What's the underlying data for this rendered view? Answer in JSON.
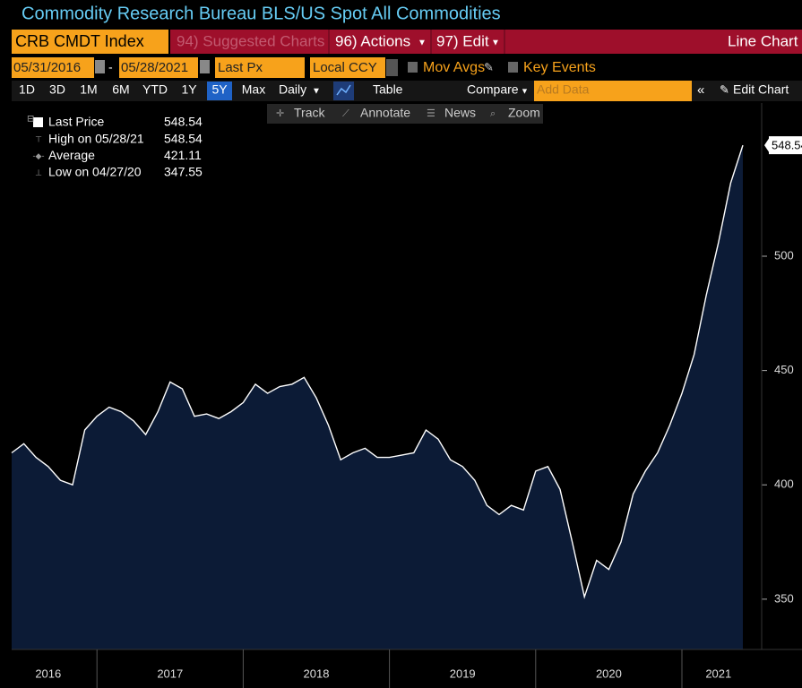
{
  "header": {
    "title": "Commodity Research Bureau BLS/US Spot All Commodities"
  },
  "toolbar": {
    "security": "CRB CMDT Index",
    "suggested": "94) Suggested Charts",
    "actions": "96) Actions",
    "edit": "97) Edit",
    "chart_type": "Line Chart"
  },
  "settings": {
    "start_date": "05/31/2016",
    "end_date": "05/28/2021",
    "field": "Last Px",
    "currency": "Local CCY",
    "mov_avgs": "Mov Avgs",
    "key_events": "Key Events"
  },
  "periods": [
    "1D",
    "3D",
    "1M",
    "6M",
    "YTD",
    "1Y",
    "5Y",
    "Max"
  ],
  "selected_period": "5Y",
  "controls": {
    "frequency": "Daily",
    "table": "Table",
    "compare": "Compare",
    "add_data": "Add Data",
    "edit_chart": "Edit Chart"
  },
  "tools": [
    "Track",
    "Annotate",
    "News",
    "Zoom"
  ],
  "chart_data": {
    "type": "line",
    "categories": [
      null,
      null,
      null,
      "2016",
      null,
      null,
      null,
      null,
      null,
      null,
      null,
      null,
      null,
      "2017",
      null,
      null,
      null,
      null,
      null,
      null,
      null,
      null,
      null,
      null,
      null,
      "2018",
      null,
      null,
      null,
      null,
      null,
      null,
      null,
      null,
      null,
      null,
      null,
      "2019",
      null,
      null,
      null,
      null,
      null,
      null,
      null,
      null,
      null,
      null,
      null,
      "2020",
      null,
      null,
      null,
      null,
      null,
      null,
      null,
      null,
      "2021",
      null,
      null
    ],
    "series": [
      {
        "name": "Last Price",
        "color": "#ffffff",
        "fill": "#0c1b36",
        "values": [
          414,
          418,
          412,
          408,
          402,
          400,
          424,
          430,
          434,
          432,
          428,
          422,
          432,
          445,
          442,
          430,
          431,
          429,
          432,
          436,
          444,
          440,
          443,
          444,
          447,
          438,
          426,
          411,
          414,
          416,
          412,
          412,
          413,
          414,
          424,
          420,
          411,
          408,
          402,
          391,
          387,
          391,
          389,
          406,
          408,
          398,
          375,
          351,
          367,
          363,
          375,
          396,
          406,
          414,
          426,
          440,
          457,
          483,
          506,
          532,
          548.54
        ]
      }
    ],
    "stats": [
      {
        "label": "High on 05/28/21",
        "value": 548.54
      },
      {
        "label": "Average",
        "value": 421.11
      },
      {
        "label": "Low on 04/27/20",
        "value": 347.55
      }
    ],
    "last_value": 548.54,
    "ylim": [
      328,
      567
    ],
    "yticks": [
      350,
      400,
      450,
      500
    ]
  }
}
